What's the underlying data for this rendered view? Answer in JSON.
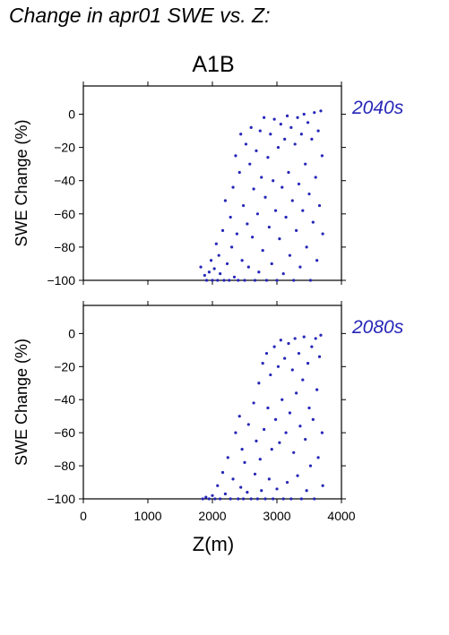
{
  "page_title": "Change in apr01 SWE vs. Z:",
  "chart_data": {
    "type": "scatter",
    "title": "A1B",
    "xlabel": "Z(m)",
    "ylabel": "SWE Change (%)",
    "xlim": [
      0,
      4000
    ],
    "ylim": [
      -100,
      17
    ],
    "xticks": [
      0,
      1000,
      2000,
      3000,
      4000
    ],
    "yticks": [
      0,
      -20,
      -40,
      -60,
      -80,
      -100
    ],
    "point_color": "#2626b8",
    "panel_label_color": "#2626b8",
    "grid": false,
    "panels": [
      {
        "label": "2040s",
        "points": [
          [
            1820,
            -92
          ],
          [
            1880,
            -97
          ],
          [
            1910,
            -100
          ],
          [
            1950,
            -95
          ],
          [
            1980,
            -88
          ],
          [
            2000,
            -100
          ],
          [
            2030,
            -93
          ],
          [
            2060,
            -78
          ],
          [
            2080,
            -100
          ],
          [
            2100,
            -85
          ],
          [
            2120,
            -96
          ],
          [
            2160,
            -70
          ],
          [
            2180,
            -100
          ],
          [
            2200,
            -52
          ],
          [
            2230,
            -90
          ],
          [
            2260,
            -100
          ],
          [
            2280,
            -62
          ],
          [
            2300,
            -80
          ],
          [
            2320,
            -44
          ],
          [
            2340,
            -98
          ],
          [
            2360,
            -25
          ],
          [
            2380,
            -72
          ],
          [
            2400,
            -100
          ],
          [
            2420,
            -35
          ],
          [
            2440,
            -12
          ],
          [
            2460,
            -88
          ],
          [
            2480,
            -55
          ],
          [
            2500,
            -100
          ],
          [
            2520,
            -18
          ],
          [
            2540,
            -66
          ],
          [
            2560,
            -92
          ],
          [
            2580,
            -30
          ],
          [
            2600,
            -8
          ],
          [
            2620,
            -74
          ],
          [
            2640,
            -45
          ],
          [
            2660,
            -100
          ],
          [
            2680,
            -22
          ],
          [
            2700,
            -60
          ],
          [
            2720,
            -95
          ],
          [
            2740,
            -10
          ],
          [
            2760,
            -38
          ],
          [
            2780,
            -82
          ],
          [
            2800,
            -2
          ],
          [
            2820,
            -50
          ],
          [
            2840,
            -100
          ],
          [
            2860,
            -26
          ],
          [
            2880,
            -68
          ],
          [
            2900,
            -12
          ],
          [
            2920,
            -90
          ],
          [
            2940,
            -40
          ],
          [
            2960,
            -3
          ],
          [
            2980,
            -58
          ],
          [
            3000,
            -100
          ],
          [
            3020,
            -20
          ],
          [
            3040,
            -75
          ],
          [
            3060,
            -6
          ],
          [
            3080,
            -44
          ],
          [
            3100,
            -96
          ],
          [
            3120,
            -15
          ],
          [
            3140,
            -62
          ],
          [
            3160,
            -1
          ],
          [
            3180,
            -35
          ],
          [
            3200,
            -85
          ],
          [
            3220,
            -8
          ],
          [
            3240,
            -52
          ],
          [
            3260,
            -100
          ],
          [
            3280,
            -18
          ],
          [
            3300,
            -70
          ],
          [
            3320,
            -2
          ],
          [
            3340,
            -42
          ],
          [
            3360,
            -92
          ],
          [
            3380,
            -12
          ],
          [
            3400,
            -58
          ],
          [
            3420,
            0
          ],
          [
            3440,
            -30
          ],
          [
            3460,
            -80
          ],
          [
            3480,
            -5
          ],
          [
            3500,
            -48
          ],
          [
            3520,
            -100
          ],
          [
            3540,
            -15
          ],
          [
            3560,
            -65
          ],
          [
            3580,
            1
          ],
          [
            3600,
            -38
          ],
          [
            3620,
            -88
          ],
          [
            3640,
            -10
          ],
          [
            3660,
            -55
          ],
          [
            3680,
            2
          ],
          [
            3700,
            -25
          ],
          [
            3710,
            -72
          ]
        ]
      },
      {
        "label": "2080s",
        "points": [
          [
            1850,
            -100
          ],
          [
            1900,
            -99
          ],
          [
            1950,
            -100
          ],
          [
            2000,
            -98
          ],
          [
            2040,
            -100
          ],
          [
            2080,
            -92
          ],
          [
            2120,
            -100
          ],
          [
            2160,
            -84
          ],
          [
            2200,
            -97
          ],
          [
            2240,
            -75
          ],
          [
            2280,
            -100
          ],
          [
            2320,
            -88
          ],
          [
            2360,
            -60
          ],
          [
            2400,
            -100
          ],
          [
            2420,
            -50
          ],
          [
            2440,
            -93
          ],
          [
            2460,
            -70
          ],
          [
            2480,
            -100
          ],
          [
            2500,
            -78
          ],
          [
            2540,
            -96
          ],
          [
            2560,
            -55
          ],
          [
            2600,
            -100
          ],
          [
            2640,
            -42
          ],
          [
            2660,
            -85
          ],
          [
            2680,
            -65
          ],
          [
            2700,
            -100
          ],
          [
            2720,
            -30
          ],
          [
            2740,
            -76
          ],
          [
            2760,
            -95
          ],
          [
            2780,
            -18
          ],
          [
            2800,
            -58
          ],
          [
            2820,
            -100
          ],
          [
            2840,
            -12
          ],
          [
            2860,
            -45
          ],
          [
            2880,
            -88
          ],
          [
            2900,
            -25
          ],
          [
            2920,
            -70
          ],
          [
            2940,
            -100
          ],
          [
            2960,
            -8
          ],
          [
            2980,
            -52
          ],
          [
            3000,
            -94
          ],
          [
            3020,
            -20
          ],
          [
            3040,
            -66
          ],
          [
            3060,
            -4
          ],
          [
            3080,
            -40
          ],
          [
            3100,
            -100
          ],
          [
            3120,
            -15
          ],
          [
            3140,
            -60
          ],
          [
            3160,
            -90
          ],
          [
            3180,
            -6
          ],
          [
            3200,
            -48
          ],
          [
            3220,
            -100
          ],
          [
            3240,
            -22
          ],
          [
            3260,
            -72
          ],
          [
            3280,
            -3
          ],
          [
            3300,
            -36
          ],
          [
            3320,
            -86
          ],
          [
            3340,
            -12
          ],
          [
            3360,
            -56
          ],
          [
            3380,
            -100
          ],
          [
            3400,
            -28
          ],
          [
            3420,
            -2
          ],
          [
            3440,
            -64
          ],
          [
            3460,
            -95
          ],
          [
            3480,
            -18
          ],
          [
            3500,
            -45
          ],
          [
            3520,
            -80
          ],
          [
            3540,
            -8
          ],
          [
            3560,
            -52
          ],
          [
            3580,
            -100
          ],
          [
            3600,
            -3
          ],
          [
            3620,
            -34
          ],
          [
            3640,
            -75
          ],
          [
            3660,
            -14
          ],
          [
            3680,
            -1
          ],
          [
            3700,
            -60
          ],
          [
            3710,
            -92
          ]
        ]
      }
    ]
  }
}
